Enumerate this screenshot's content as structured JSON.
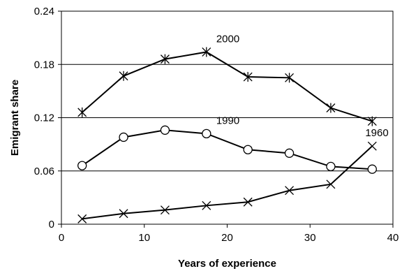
{
  "chart_data": {
    "type": "line",
    "xlabel": "Years of experience",
    "ylabel": "Emigrant share",
    "xlim": [
      0,
      40
    ],
    "ylim": [
      0,
      0.24
    ],
    "x_ticks": [
      "0",
      "10",
      "20",
      "30",
      "40"
    ],
    "y_ticks": [
      "0",
      "0.06",
      "0.12",
      "0.18",
      "0.24"
    ],
    "grid": "horizontal",
    "legend": "none (series labeled directly on lines)",
    "x": [
      2.5,
      7.5,
      12.5,
      17.5,
      22.5,
      27.5,
      32.5,
      37.5
    ],
    "series": [
      {
        "name": "2000",
        "marker": "asterisk",
        "values": [
          0.126,
          0.167,
          0.186,
          0.194,
          0.166,
          0.165,
          0.131,
          0.116
        ]
      },
      {
        "name": "1990",
        "marker": "circle",
        "values": [
          0.066,
          0.098,
          0.106,
          0.102,
          0.084,
          0.08,
          0.065,
          0.062
        ]
      },
      {
        "name": "1960",
        "marker": "x",
        "values": [
          0.006,
          0.012,
          0.016,
          0.021,
          0.025,
          0.038,
          0.045,
          0.088
        ]
      }
    ],
    "line_color": "#000000",
    "grid_color": "#000000"
  }
}
